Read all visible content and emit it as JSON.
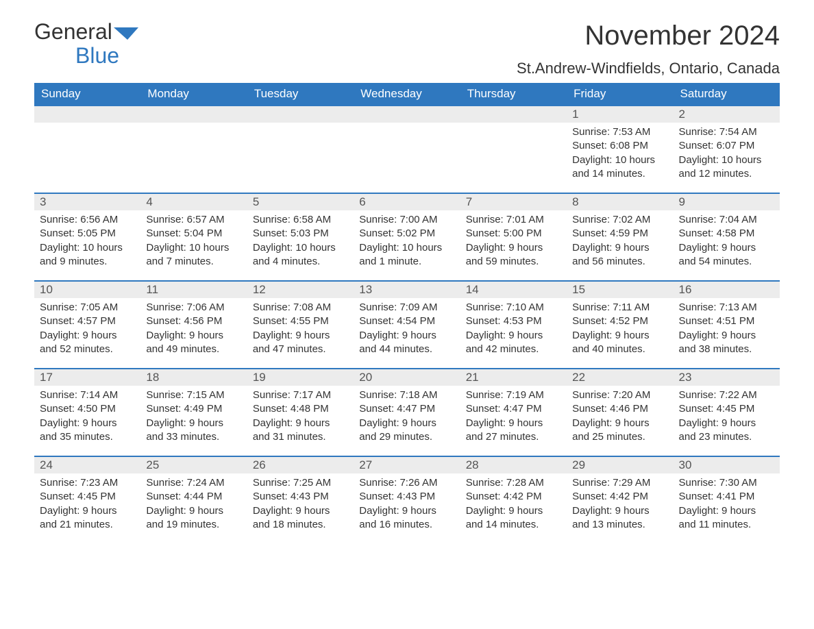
{
  "logo": {
    "text1": "General",
    "text2": "Blue"
  },
  "title": "November 2024",
  "location": "St.Andrew-Windfields, Ontario, Canada",
  "colors": {
    "header_bg": "#2f78bf",
    "header_text": "#ffffff",
    "daynum_bg": "#ececec",
    "border": "#2f78bf",
    "text": "#333333",
    "background": "#ffffff"
  },
  "typography": {
    "title_fontsize": 40,
    "location_fontsize": 22,
    "header_fontsize": 17,
    "body_fontsize": 15
  },
  "weekdays": [
    "Sunday",
    "Monday",
    "Tuesday",
    "Wednesday",
    "Thursday",
    "Friday",
    "Saturday"
  ],
  "weeks": [
    [
      null,
      null,
      null,
      null,
      null,
      {
        "n": "1",
        "sunrise": "7:53 AM",
        "sunset": "6:08 PM",
        "daylight": "10 hours and 14 minutes."
      },
      {
        "n": "2",
        "sunrise": "7:54 AM",
        "sunset": "6:07 PM",
        "daylight": "10 hours and 12 minutes."
      }
    ],
    [
      {
        "n": "3",
        "sunrise": "6:56 AM",
        "sunset": "5:05 PM",
        "daylight": "10 hours and 9 minutes."
      },
      {
        "n": "4",
        "sunrise": "6:57 AM",
        "sunset": "5:04 PM",
        "daylight": "10 hours and 7 minutes."
      },
      {
        "n": "5",
        "sunrise": "6:58 AM",
        "sunset": "5:03 PM",
        "daylight": "10 hours and 4 minutes."
      },
      {
        "n": "6",
        "sunrise": "7:00 AM",
        "sunset": "5:02 PM",
        "daylight": "10 hours and 1 minute."
      },
      {
        "n": "7",
        "sunrise": "7:01 AM",
        "sunset": "5:00 PM",
        "daylight": "9 hours and 59 minutes."
      },
      {
        "n": "8",
        "sunrise": "7:02 AM",
        "sunset": "4:59 PM",
        "daylight": "9 hours and 56 minutes."
      },
      {
        "n": "9",
        "sunrise": "7:04 AM",
        "sunset": "4:58 PM",
        "daylight": "9 hours and 54 minutes."
      }
    ],
    [
      {
        "n": "10",
        "sunrise": "7:05 AM",
        "sunset": "4:57 PM",
        "daylight": "9 hours and 52 minutes."
      },
      {
        "n": "11",
        "sunrise": "7:06 AM",
        "sunset": "4:56 PM",
        "daylight": "9 hours and 49 minutes."
      },
      {
        "n": "12",
        "sunrise": "7:08 AM",
        "sunset": "4:55 PM",
        "daylight": "9 hours and 47 minutes."
      },
      {
        "n": "13",
        "sunrise": "7:09 AM",
        "sunset": "4:54 PM",
        "daylight": "9 hours and 44 minutes."
      },
      {
        "n": "14",
        "sunrise": "7:10 AM",
        "sunset": "4:53 PM",
        "daylight": "9 hours and 42 minutes."
      },
      {
        "n": "15",
        "sunrise": "7:11 AM",
        "sunset": "4:52 PM",
        "daylight": "9 hours and 40 minutes."
      },
      {
        "n": "16",
        "sunrise": "7:13 AM",
        "sunset": "4:51 PM",
        "daylight": "9 hours and 38 minutes."
      }
    ],
    [
      {
        "n": "17",
        "sunrise": "7:14 AM",
        "sunset": "4:50 PM",
        "daylight": "9 hours and 35 minutes."
      },
      {
        "n": "18",
        "sunrise": "7:15 AM",
        "sunset": "4:49 PM",
        "daylight": "9 hours and 33 minutes."
      },
      {
        "n": "19",
        "sunrise": "7:17 AM",
        "sunset": "4:48 PM",
        "daylight": "9 hours and 31 minutes."
      },
      {
        "n": "20",
        "sunrise": "7:18 AM",
        "sunset": "4:47 PM",
        "daylight": "9 hours and 29 minutes."
      },
      {
        "n": "21",
        "sunrise": "7:19 AM",
        "sunset": "4:47 PM",
        "daylight": "9 hours and 27 minutes."
      },
      {
        "n": "22",
        "sunrise": "7:20 AM",
        "sunset": "4:46 PM",
        "daylight": "9 hours and 25 minutes."
      },
      {
        "n": "23",
        "sunrise": "7:22 AM",
        "sunset": "4:45 PM",
        "daylight": "9 hours and 23 minutes."
      }
    ],
    [
      {
        "n": "24",
        "sunrise": "7:23 AM",
        "sunset": "4:45 PM",
        "daylight": "9 hours and 21 minutes."
      },
      {
        "n": "25",
        "sunrise": "7:24 AM",
        "sunset": "4:44 PM",
        "daylight": "9 hours and 19 minutes."
      },
      {
        "n": "26",
        "sunrise": "7:25 AM",
        "sunset": "4:43 PM",
        "daylight": "9 hours and 18 minutes."
      },
      {
        "n": "27",
        "sunrise": "7:26 AM",
        "sunset": "4:43 PM",
        "daylight": "9 hours and 16 minutes."
      },
      {
        "n": "28",
        "sunrise": "7:28 AM",
        "sunset": "4:42 PM",
        "daylight": "9 hours and 14 minutes."
      },
      {
        "n": "29",
        "sunrise": "7:29 AM",
        "sunset": "4:42 PM",
        "daylight": "9 hours and 13 minutes."
      },
      {
        "n": "30",
        "sunrise": "7:30 AM",
        "sunset": "4:41 PM",
        "daylight": "9 hours and 11 minutes."
      }
    ]
  ],
  "labels": {
    "sunrise": "Sunrise: ",
    "sunset": "Sunset: ",
    "daylight": "Daylight: "
  }
}
